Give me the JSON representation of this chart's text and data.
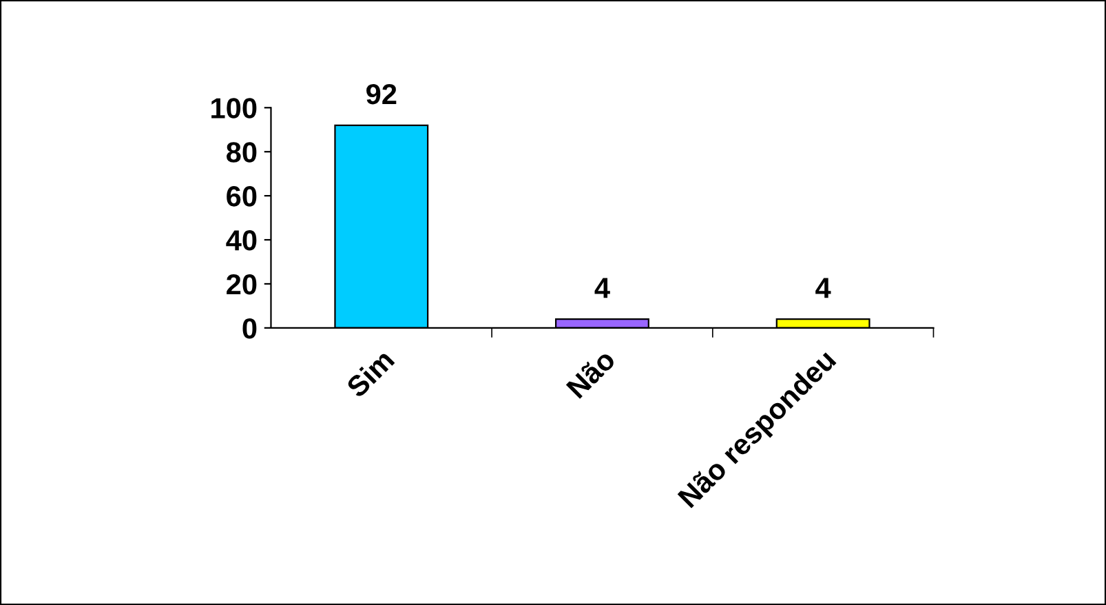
{
  "chart_data": {
    "type": "bar",
    "categories": [
      "Sim",
      "Não",
      "Não respondeu"
    ],
    "values": [
      92,
      4,
      4
    ],
    "colors": [
      "#00ccff",
      "#9966ff",
      "#ffff00"
    ],
    "ylim": [
      0,
      100
    ],
    "yticks": [
      0,
      20,
      40,
      60,
      80,
      100
    ],
    "data_labels": true
  }
}
